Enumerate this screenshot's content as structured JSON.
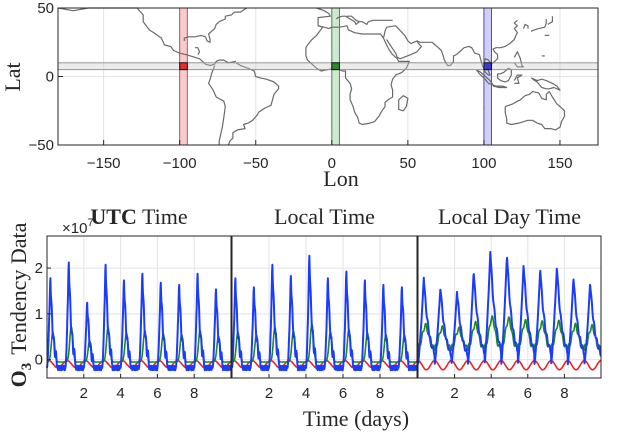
{
  "chart_data": [
    {
      "type": "map",
      "xlabel": "Lon",
      "ylabel": "Lat",
      "xlim": [
        -180,
        175
      ],
      "ylim": [
        -50,
        50
      ],
      "xticks": [
        -150,
        -100,
        -50,
        0,
        50,
        100,
        150
      ],
      "yticks": [
        -50,
        0,
        50
      ],
      "grid": true,
      "lat_band": [
        5,
        10
      ],
      "regions": [
        {
          "lon_range": [
            -100,
            -95
          ],
          "color": "#e03030",
          "fill": "#f6cccc"
        },
        {
          "lon_range": [
            0,
            5
          ],
          "color": "#2a8a2a",
          "fill": "#cfe8cf"
        },
        {
          "lon_range": [
            100,
            105
          ],
          "color": "#3a3ad0",
          "fill": "#d0d0f4"
        }
      ]
    },
    {
      "type": "line",
      "ylabel_bold": "O",
      "ylabel_sub": "3",
      "ylabel": "Tendency Data",
      "xlabel": "Time (days)",
      "y_multiplier": "×10",
      "y_multiplier_exp": "7",
      "ylim": [
        -0.4,
        2.7
      ],
      "yticks": [
        0,
        1,
        2
      ],
      "xlim": [
        0,
        10
      ],
      "xticks": [
        2,
        4,
        6,
        8
      ],
      "panels": [
        {
          "title_bold": "UTC",
          "title": " Time"
        },
        {
          "title": "Local Time"
        },
        {
          "title": "Local Day Time"
        }
      ],
      "series_colors": [
        "#1b3cff",
        "#1a8a1a",
        "#ee2222"
      ],
      "panel_peaks": [
        [
          1.9,
          2.25,
          1.35,
          2.2,
          1.85,
          2.0,
          1.8,
          1.75,
          2.0,
          1.65
        ],
        [
          1.9,
          1.7,
          2.2,
          1.95,
          2.4,
          1.9,
          2.05,
          1.85,
          1.75,
          1.7
        ],
        [
          1.8,
          1.6,
          1.5,
          1.95,
          2.4,
          2.3,
          2.1,
          2.0,
          2.05,
          1.8,
          1.7
        ]
      ]
    }
  ]
}
